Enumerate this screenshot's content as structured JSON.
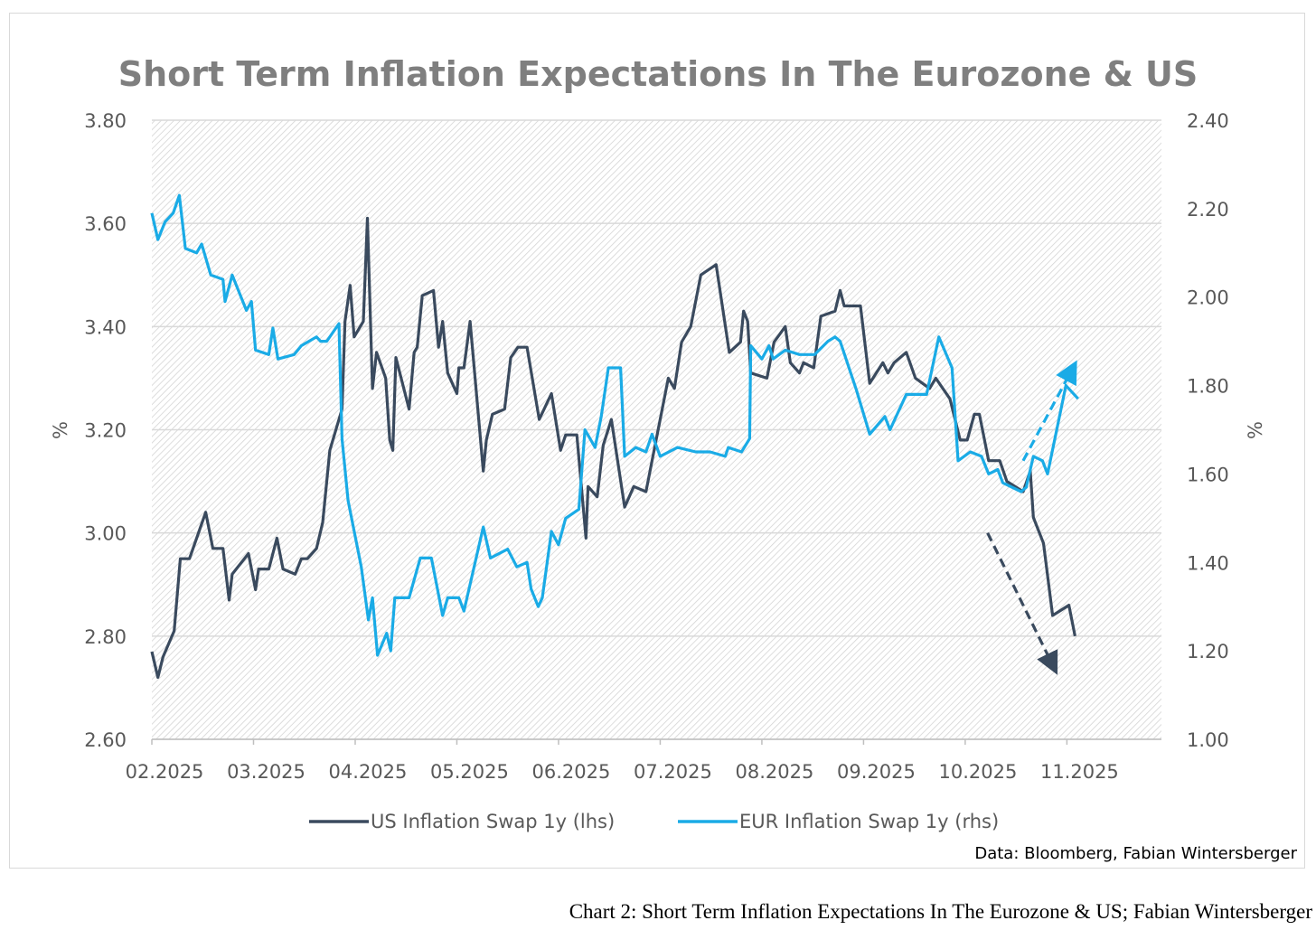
{
  "chart_data": {
    "type": "line",
    "title": "Short Term Inflation Expectations In The Eurozone & US",
    "x_unit": "months since 02.2025",
    "xlim": [
      0,
      9.93
    ],
    "x_ticks": [
      0,
      1,
      2,
      3,
      4,
      5,
      6,
      7,
      8,
      9
    ],
    "x_tick_labels": [
      "02.2025",
      "03.2025",
      "04.2025",
      "05.2025",
      "06.2025",
      "07.2025",
      "08.2025",
      "09.2025",
      "10.2025",
      "11.2025"
    ],
    "ylabel_left": "%",
    "ylabel_right": "%",
    "ylim_left": [
      2.6,
      3.8
    ],
    "ylim_right": [
      1.0,
      2.4
    ],
    "y_ticks_left": [
      "2.60",
      "2.80",
      "3.00",
      "3.20",
      "3.40",
      "3.60",
      "3.80"
    ],
    "y_ticks_right": [
      "1.00",
      "1.20",
      "1.40",
      "1.60",
      "1.80",
      "2.00",
      "2.20",
      "2.40"
    ],
    "grid": true,
    "legend_position": "bottom",
    "series": [
      {
        "name": "US Inflation Swap 1y (lhs)",
        "axis": "left",
        "color": "#3a4a5e",
        "points": [
          [
            0,
            2.77
          ],
          [
            0.06,
            2.72
          ],
          [
            0.11,
            2.76
          ],
          [
            0.22,
            2.81
          ],
          [
            0.28,
            2.95
          ],
          [
            0.37,
            2.95
          ],
          [
            0.53,
            3.04
          ],
          [
            0.6,
            2.97
          ],
          [
            0.7,
            2.97
          ],
          [
            0.76,
            2.87
          ],
          [
            0.79,
            2.92
          ],
          [
            0.95,
            2.96
          ],
          [
            1.02,
            2.89
          ],
          [
            1.05,
            2.93
          ],
          [
            1.15,
            2.93
          ],
          [
            1.23,
            2.99
          ],
          [
            1.29,
            2.93
          ],
          [
            1.41,
            2.92
          ],
          [
            1.47,
            2.95
          ],
          [
            1.53,
            2.95
          ],
          [
            1.62,
            2.97
          ],
          [
            1.68,
            3.02
          ],
          [
            1.75,
            3.16
          ],
          [
            1.87,
            3.24
          ],
          [
            1.9,
            3.41
          ],
          [
            1.95,
            3.48
          ],
          [
            1.99,
            3.38
          ],
          [
            2.08,
            3.41
          ],
          [
            2.12,
            3.61
          ],
          [
            2.17,
            3.28
          ],
          [
            2.21,
            3.35
          ],
          [
            2.3,
            3.3
          ],
          [
            2.34,
            3.18
          ],
          [
            2.37,
            3.16
          ],
          [
            2.4,
            3.34
          ],
          [
            2.53,
            3.24
          ],
          [
            2.58,
            3.35
          ],
          [
            2.61,
            3.36
          ],
          [
            2.66,
            3.46
          ],
          [
            2.77,
            3.47
          ],
          [
            2.82,
            3.36
          ],
          [
            2.86,
            3.41
          ],
          [
            2.91,
            3.31
          ],
          [
            3.0,
            3.27
          ],
          [
            3.02,
            3.32
          ],
          [
            3.07,
            3.32
          ],
          [
            3.13,
            3.41
          ],
          [
            3.26,
            3.12
          ],
          [
            3.29,
            3.18
          ],
          [
            3.35,
            3.23
          ],
          [
            3.47,
            3.24
          ],
          [
            3.53,
            3.34
          ],
          [
            3.6,
            3.36
          ],
          [
            3.69,
            3.36
          ],
          [
            3.81,
            3.22
          ],
          [
            3.93,
            3.27
          ],
          [
            4.02,
            3.16
          ],
          [
            4.07,
            3.19
          ],
          [
            4.18,
            3.19
          ],
          [
            4.27,
            2.99
          ],
          [
            4.29,
            3.09
          ],
          [
            4.38,
            3.07
          ],
          [
            4.44,
            3.17
          ],
          [
            4.52,
            3.22
          ],
          [
            4.65,
            3.05
          ],
          [
            4.74,
            3.09
          ],
          [
            4.86,
            3.08
          ],
          [
            4.96,
            3.18
          ],
          [
            5.08,
            3.3
          ],
          [
            5.14,
            3.28
          ],
          [
            5.21,
            3.37
          ],
          [
            5.3,
            3.4
          ],
          [
            5.4,
            3.5
          ],
          [
            5.55,
            3.52
          ],
          [
            5.68,
            3.35
          ],
          [
            5.79,
            3.37
          ],
          [
            5.82,
            3.43
          ],
          [
            5.86,
            3.41
          ],
          [
            5.89,
            3.31
          ],
          [
            6.05,
            3.3
          ],
          [
            6.12,
            3.37
          ],
          [
            6.23,
            3.4
          ],
          [
            6.28,
            3.33
          ],
          [
            6.37,
            3.31
          ],
          [
            6.41,
            3.33
          ],
          [
            6.51,
            3.32
          ],
          [
            6.58,
            3.42
          ],
          [
            6.72,
            3.43
          ],
          [
            6.77,
            3.47
          ],
          [
            6.81,
            3.44
          ],
          [
            6.97,
            3.44
          ],
          [
            7.06,
            3.29
          ],
          [
            7.19,
            3.33
          ],
          [
            7.24,
            3.31
          ],
          [
            7.3,
            3.33
          ],
          [
            7.42,
            3.35
          ],
          [
            7.51,
            3.3
          ],
          [
            7.65,
            3.28
          ],
          [
            7.71,
            3.3
          ],
          [
            7.85,
            3.26
          ],
          [
            7.95,
            3.18
          ],
          [
            8.02,
            3.18
          ],
          [
            8.09,
            3.23
          ],
          [
            8.14,
            3.23
          ],
          [
            8.23,
            3.14
          ],
          [
            8.34,
            3.14
          ],
          [
            8.41,
            3.1
          ],
          [
            8.57,
            3.08
          ],
          [
            8.64,
            3.12
          ],
          [
            8.67,
            3.03
          ],
          [
            8.77,
            2.98
          ],
          [
            8.86,
            2.84
          ],
          [
            9.02,
            2.86
          ],
          [
            9.08,
            2.8
          ]
        ]
      },
      {
        "name": "EUR Inflation Swap 1y (rhs)",
        "axis": "right",
        "color": "#1aabe6",
        "points": [
          [
            0,
            2.19
          ],
          [
            0.06,
            2.13
          ],
          [
            0.13,
            2.17
          ],
          [
            0.21,
            2.19
          ],
          [
            0.27,
            2.23
          ],
          [
            0.33,
            2.11
          ],
          [
            0.44,
            2.1
          ],
          [
            0.49,
            2.12
          ],
          [
            0.58,
            2.05
          ],
          [
            0.7,
            2.04
          ],
          [
            0.72,
            1.99
          ],
          [
            0.79,
            2.05
          ],
          [
            0.93,
            1.97
          ],
          [
            0.98,
            1.99
          ],
          [
            1.02,
            1.88
          ],
          [
            1.15,
            1.87
          ],
          [
            1.19,
            1.93
          ],
          [
            1.24,
            1.86
          ],
          [
            1.4,
            1.87
          ],
          [
            1.47,
            1.89
          ],
          [
            1.62,
            1.91
          ],
          [
            1.66,
            1.9
          ],
          [
            1.72,
            1.9
          ],
          [
            1.84,
            1.94
          ],
          [
            1.87,
            1.68
          ],
          [
            1.93,
            1.54
          ],
          [
            2.06,
            1.39
          ],
          [
            2.13,
            1.27
          ],
          [
            2.17,
            1.32
          ],
          [
            2.22,
            1.19
          ],
          [
            2.31,
            1.24
          ],
          [
            2.35,
            1.2
          ],
          [
            2.39,
            1.32
          ],
          [
            2.53,
            1.32
          ],
          [
            2.64,
            1.41
          ],
          [
            2.75,
            1.41
          ],
          [
            2.86,
            1.28
          ],
          [
            2.91,
            1.32
          ],
          [
            3.02,
            1.32
          ],
          [
            3.07,
            1.29
          ],
          [
            3.26,
            1.48
          ],
          [
            3.33,
            1.41
          ],
          [
            3.5,
            1.43
          ],
          [
            3.59,
            1.39
          ],
          [
            3.69,
            1.4
          ],
          [
            3.73,
            1.34
          ],
          [
            3.8,
            1.3
          ],
          [
            3.84,
            1.32
          ],
          [
            3.93,
            1.47
          ],
          [
            4.0,
            1.44
          ],
          [
            4.07,
            1.5
          ],
          [
            4.2,
            1.52
          ],
          [
            4.26,
            1.7
          ],
          [
            4.36,
            1.66
          ],
          [
            4.42,
            1.73
          ],
          [
            4.49,
            1.84
          ],
          [
            4.61,
            1.84
          ],
          [
            4.65,
            1.64
          ],
          [
            4.76,
            1.66
          ],
          [
            4.86,
            1.65
          ],
          [
            4.92,
            1.69
          ],
          [
            5.0,
            1.64
          ],
          [
            5.17,
            1.66
          ],
          [
            5.35,
            1.65
          ],
          [
            5.49,
            1.65
          ],
          [
            5.64,
            1.64
          ],
          [
            5.67,
            1.66
          ],
          [
            5.8,
            1.65
          ],
          [
            5.88,
            1.68
          ],
          [
            5.89,
            1.89
          ],
          [
            6.0,
            1.86
          ],
          [
            6.07,
            1.89
          ],
          [
            6.11,
            1.86
          ],
          [
            6.23,
            1.88
          ],
          [
            6.37,
            1.87
          ],
          [
            6.52,
            1.87
          ],
          [
            6.65,
            1.9
          ],
          [
            6.72,
            1.91
          ],
          [
            6.77,
            1.9
          ],
          [
            6.93,
            1.79
          ],
          [
            7.06,
            1.69
          ],
          [
            7.21,
            1.73
          ],
          [
            7.26,
            1.7
          ],
          [
            7.42,
            1.78
          ],
          [
            7.62,
            1.78
          ],
          [
            7.74,
            1.91
          ],
          [
            7.87,
            1.84
          ],
          [
            7.93,
            1.63
          ],
          [
            8.05,
            1.65
          ],
          [
            8.16,
            1.64
          ],
          [
            8.23,
            1.6
          ],
          [
            8.32,
            1.61
          ],
          [
            8.37,
            1.58
          ],
          [
            8.55,
            1.56
          ],
          [
            8.6,
            1.57
          ],
          [
            8.67,
            1.64
          ],
          [
            8.76,
            1.63
          ],
          [
            8.81,
            1.6
          ],
          [
            8.99,
            1.8
          ],
          [
            9.11,
            1.77
          ]
        ]
      }
    ],
    "annotations": [
      {
        "type": "dashed-arrow",
        "axis": "right",
        "color": "#1aabe6",
        "from": [
          8.57,
          1.63
        ],
        "to": [
          9.06,
          1.84
        ]
      },
      {
        "type": "dashed-arrow",
        "axis": "left",
        "color": "#3a4a5e",
        "from": [
          8.22,
          3.0
        ],
        "to": [
          8.87,
          2.74
        ]
      }
    ],
    "source": "Data: Bloomberg, Fabian Wintersberger"
  },
  "caption": "Chart 2: Short Term Inflation Expectations In The Eurozone & US; Fabian Wintersberger"
}
